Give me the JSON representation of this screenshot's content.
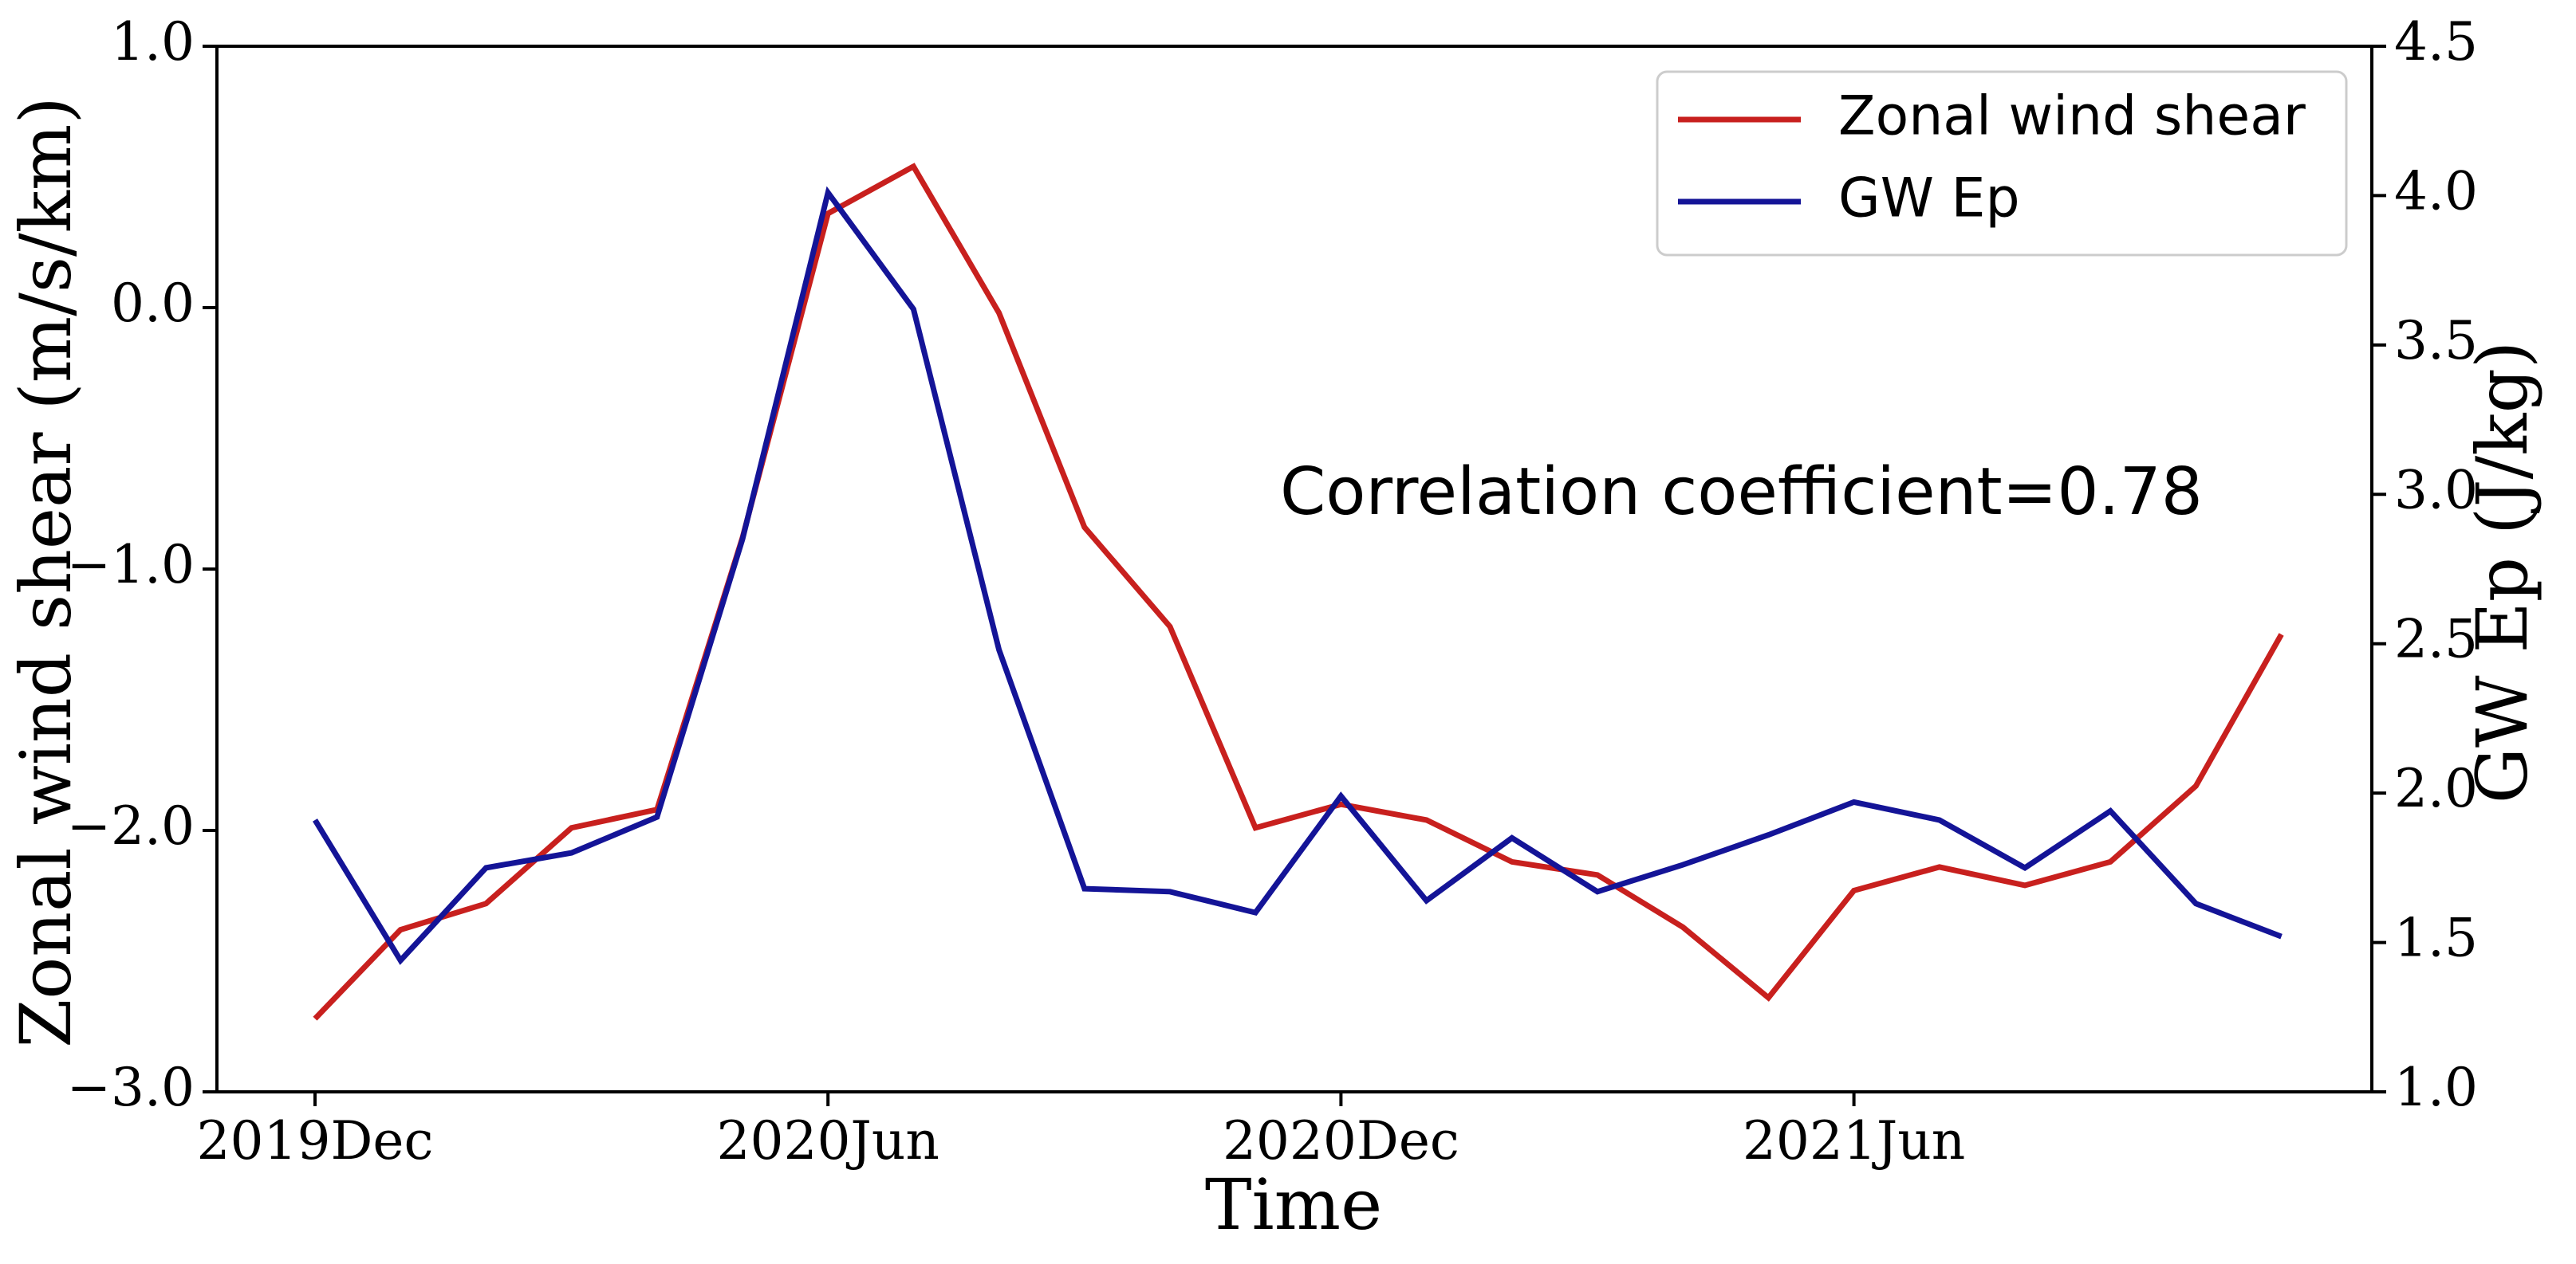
{
  "chart_data": {
    "type": "line",
    "xlabel": "Time",
    "ylabel_left": "Zonal wind shear (m/s/km)",
    "ylabel_right": "GW Ep (J/kg)",
    "x": [
      "2019-12",
      "2020-01",
      "2020-02",
      "2020-03",
      "2020-04",
      "2020-05",
      "2020-06",
      "2020-07",
      "2020-08",
      "2020-09",
      "2020-10",
      "2020-11",
      "2020-12",
      "2021-01",
      "2021-02",
      "2021-03",
      "2021-04",
      "2021-05",
      "2021-06",
      "2021-07",
      "2021-08",
      "2021-09",
      "2021-10",
      "2021-11",
      "2021-12"
    ],
    "x_tick_labels": [
      "2019Dec",
      "2020Jun",
      "2020Dec",
      "2021Jun"
    ],
    "x_tick_values": [
      "2019-12",
      "2020-06",
      "2020-12",
      "2021-06"
    ],
    "ylim_left": [
      -3.0,
      1.0
    ],
    "yticks_left": [
      "−3.0",
      "−2.0",
      "−1.0",
      "0.0",
      "1.0"
    ],
    "ylim_right": [
      1.0,
      4.5
    ],
    "yticks_right": [
      "1.0",
      "1.5",
      "2.0",
      "2.5",
      "3.0",
      "3.5",
      "4.0",
      "4.5"
    ],
    "series": [
      {
        "name": "Zonal wind shear",
        "axis": "left",
        "color": "#c8201e",
        "values": [
          -2.72,
          -2.38,
          -2.28,
          -1.99,
          -1.92,
          -0.88,
          0.36,
          0.54,
          -0.02,
          -0.84,
          -1.22,
          -1.99,
          -1.9,
          -1.96,
          -2.12,
          -2.17,
          -2.37,
          -2.64,
          -2.23,
          -2.14,
          -2.21,
          -2.12,
          -1.83,
          -1.25,
          null
        ],
        "valid_until": 24
      },
      {
        "name": "GW Ep",
        "axis": "right",
        "color": "#141497",
        "values": [
          1.91,
          1.44,
          1.75,
          1.8,
          1.92,
          2.85,
          4.01,
          3.62,
          2.48,
          1.68,
          1.67,
          1.6,
          1.99,
          1.64,
          1.85,
          1.67,
          1.76,
          1.86,
          1.97,
          1.91,
          1.75,
          1.94,
          1.63,
          1.52,
          null
        ]
      }
    ],
    "legend": {
      "position": "top-right",
      "entries": [
        "Zonal wind shear",
        "GW Ep"
      ]
    },
    "annotation": "Correlation coefficient=0.78",
    "grid": false
  }
}
